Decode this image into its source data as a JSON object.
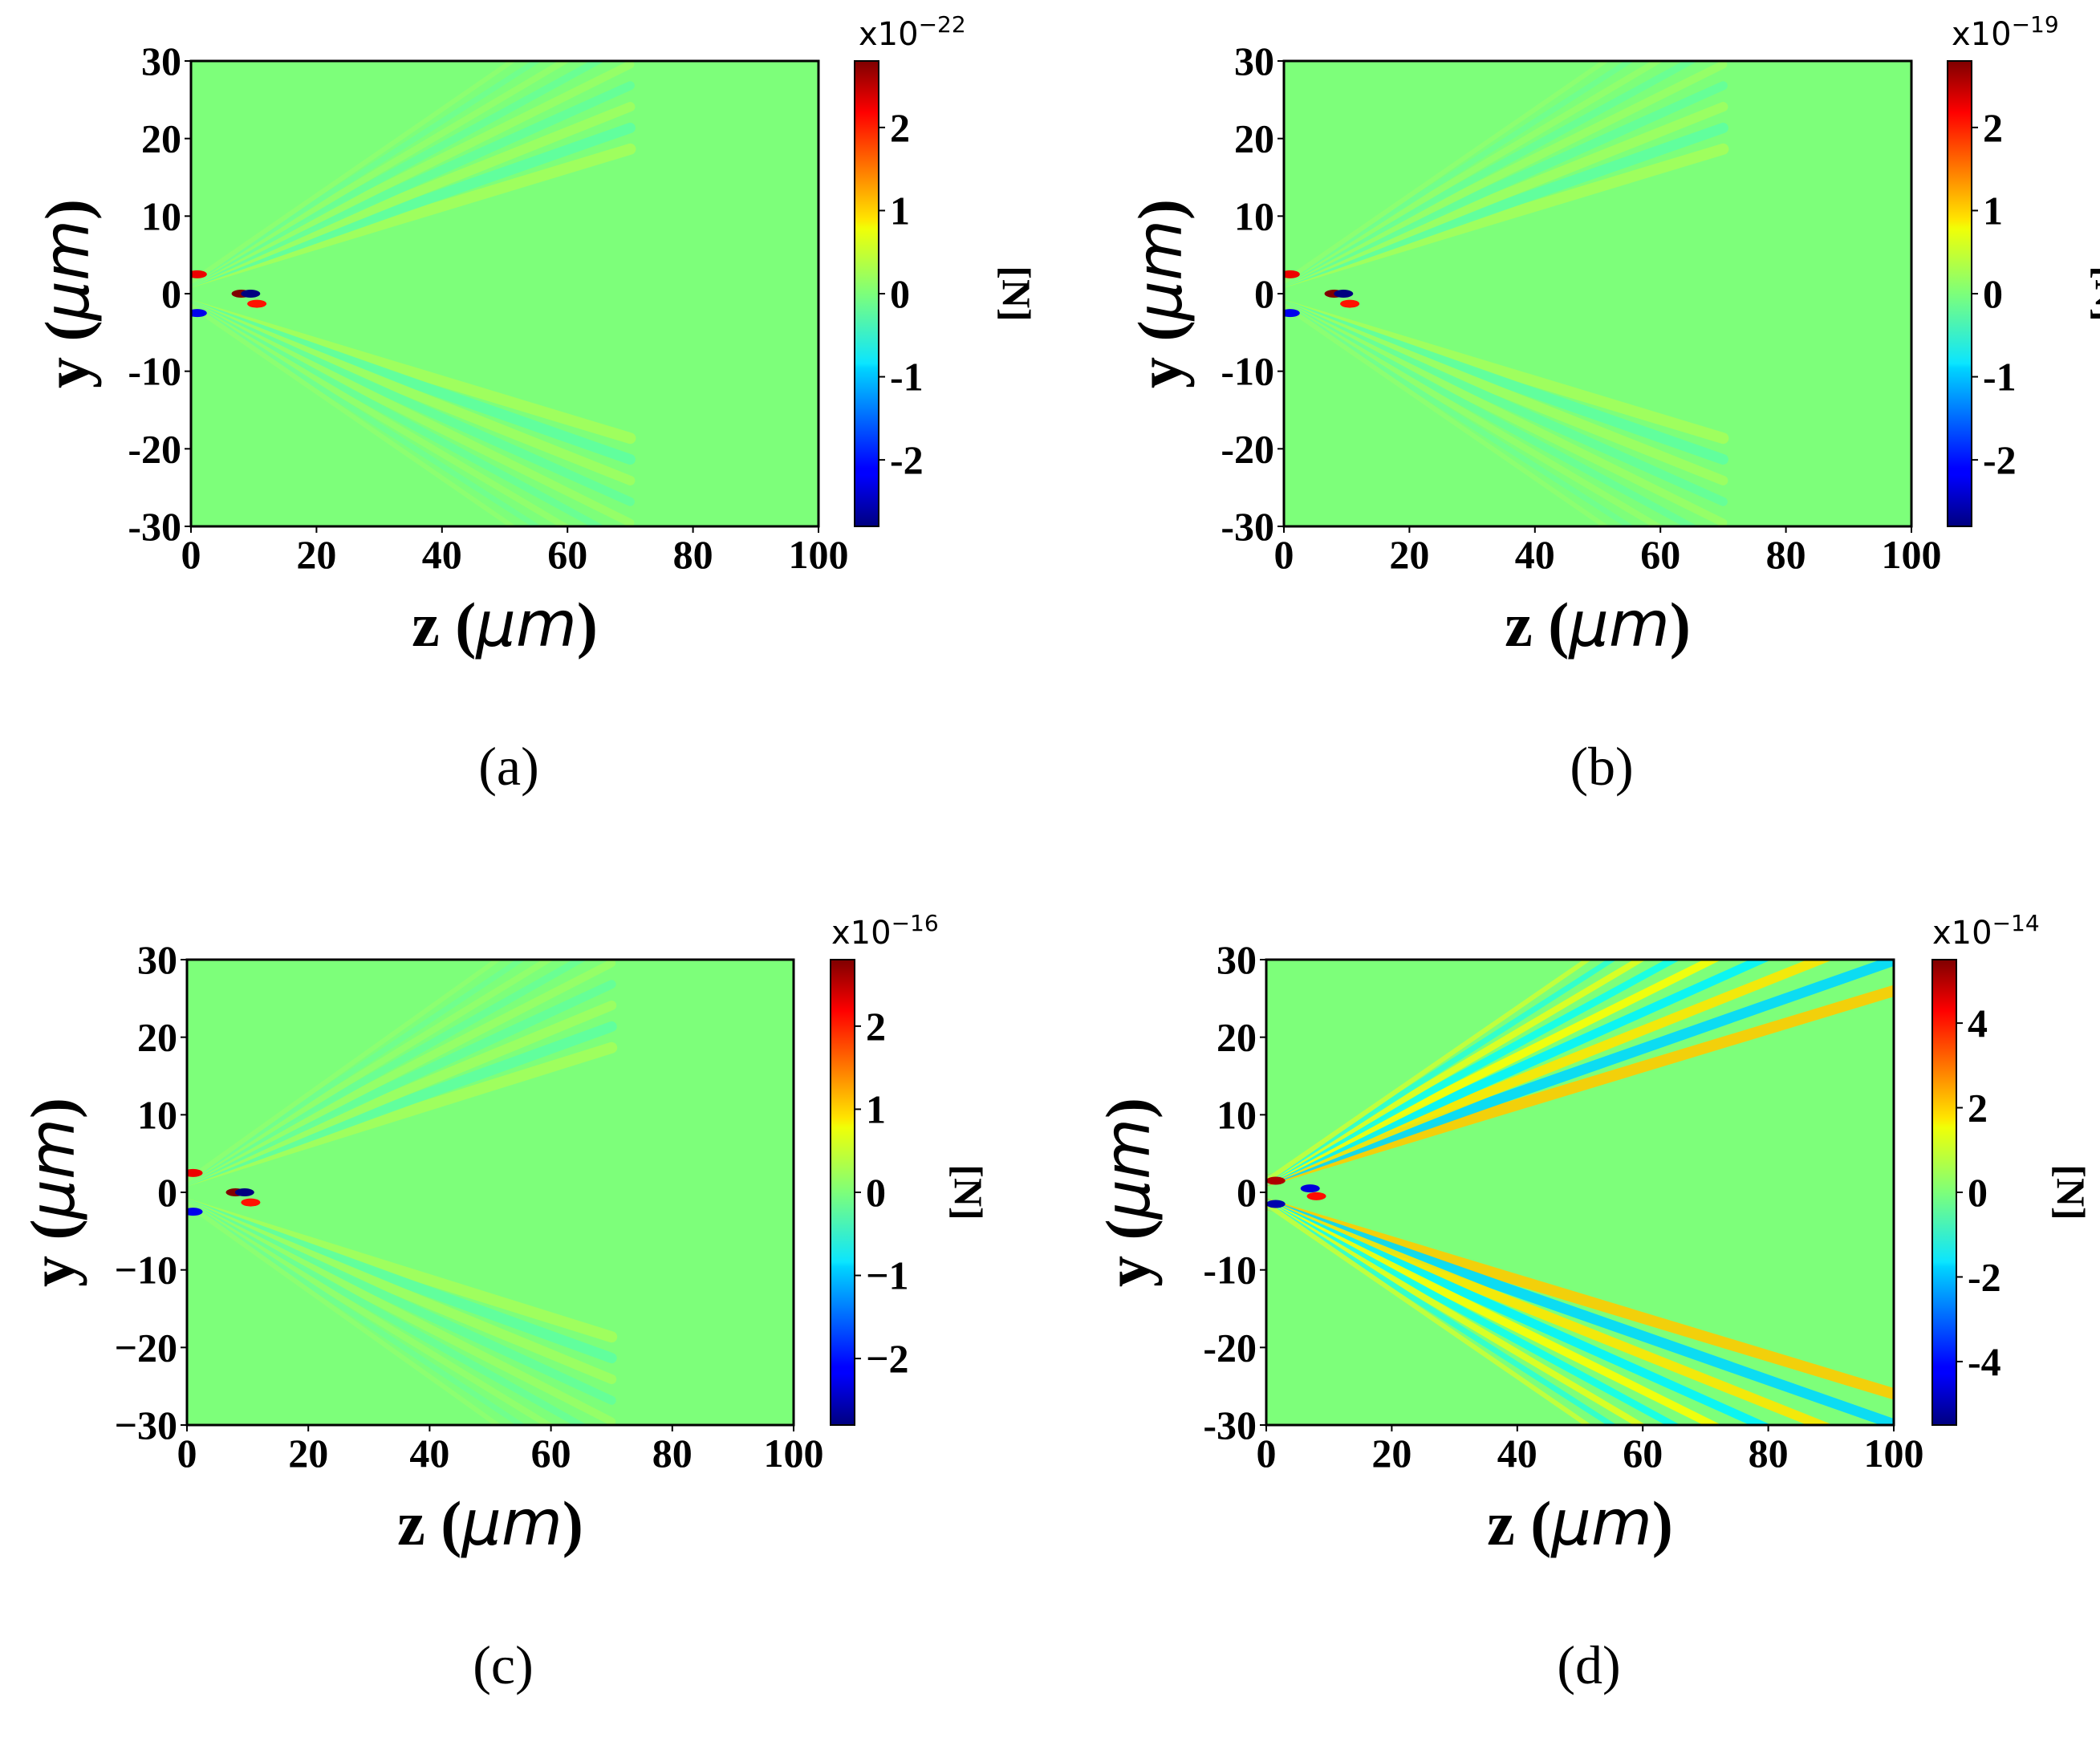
{
  "chart_data": [
    {
      "type": "heatmap",
      "panel_label": "(a)",
      "xlabel": "z",
      "xlabel_unit": "μm",
      "ylabel": "y",
      "ylabel_unit": "μm",
      "xlim": [
        0,
        100
      ],
      "ylim": [
        -30,
        30
      ],
      "xticks": [
        0,
        20,
        40,
        60,
        80,
        100
      ],
      "yticks": [
        30,
        20,
        10,
        0,
        -10,
        -20,
        -30
      ],
      "ytick_labels": [
        "30",
        "20",
        "10",
        "0",
        "-10",
        "-20",
        "-30"
      ],
      "colorbar": {
        "multiplier_base": "x10",
        "multiplier_exp": "−22",
        "unit": "[N]",
        "ticks": [
          2,
          1,
          0,
          -1,
          -2
        ],
        "tick_labels": [
          "2",
          "1",
          "0",
          "-1",
          "-2"
        ],
        "range": [
          -2.8,
          2.8
        ],
        "colormap": "jet"
      },
      "background_value": 0,
      "features": [
        {
          "kind": "beam",
          "z_range": [
            0,
            70
          ],
          "spread_deg": 24,
          "strength": 0.07
        },
        {
          "kind": "spot",
          "z": 8,
          "y": 0,
          "value": 2.8
        },
        {
          "kind": "spot",
          "z": 9.5,
          "y": 0,
          "value": -2.8
        },
        {
          "kind": "spot",
          "z": 1,
          "y": 2.5,
          "value": 2.2
        },
        {
          "kind": "spot",
          "z": 1,
          "y": -2.5,
          "value": -2.2
        },
        {
          "kind": "spot",
          "z": 10.5,
          "y": -1.3,
          "value": 2.0
        }
      ]
    },
    {
      "type": "heatmap",
      "panel_label": "(b)",
      "xlabel": "z",
      "xlabel_unit": "μm",
      "ylabel": "y",
      "ylabel_unit": "μm",
      "xlim": [
        0,
        100
      ],
      "ylim": [
        -30,
        30
      ],
      "xticks": [
        0,
        20,
        40,
        60,
        80,
        100
      ],
      "yticks": [
        30,
        20,
        10,
        0,
        -10,
        -20,
        -30
      ],
      "ytick_labels": [
        "30",
        "20",
        "10",
        "0",
        "-10",
        "-20",
        "-30"
      ],
      "colorbar": {
        "multiplier_base": "x10",
        "multiplier_exp": "−19",
        "unit": "[N]",
        "ticks": [
          2,
          1,
          0,
          -1,
          -2
        ],
        "tick_labels": [
          "2",
          "1",
          "0",
          "-1",
          "-2"
        ],
        "range": [
          -2.8,
          2.8
        ],
        "colormap": "jet"
      },
      "background_value": 0,
      "features": [
        {
          "kind": "beam",
          "z_range": [
            0,
            70
          ],
          "spread_deg": 24,
          "strength": 0.07
        },
        {
          "kind": "spot",
          "z": 8,
          "y": 0,
          "value": 2.8
        },
        {
          "kind": "spot",
          "z": 9.5,
          "y": 0,
          "value": -2.8
        },
        {
          "kind": "spot",
          "z": 1,
          "y": 2.5,
          "value": 2.2
        },
        {
          "kind": "spot",
          "z": 1,
          "y": -2.5,
          "value": -2.2
        },
        {
          "kind": "spot",
          "z": 10.5,
          "y": -1.3,
          "value": 2.0
        }
      ]
    },
    {
      "type": "heatmap",
      "panel_label": "(c)",
      "xlabel": "z",
      "xlabel_unit": "μm",
      "ylabel": "y",
      "ylabel_unit": "μm",
      "xlim": [
        0,
        100
      ],
      "ylim": [
        -30,
        30
      ],
      "xticks": [
        0,
        20,
        40,
        60,
        80,
        100
      ],
      "yticks": [
        30,
        20,
        10,
        0,
        -10,
        -20,
        -30
      ],
      "ytick_labels": [
        "30",
        "20",
        "10",
        "0",
        "−10",
        "−20",
        "−30"
      ],
      "colorbar": {
        "multiplier_base": "x10",
        "multiplier_exp": "−16",
        "unit": "[N]",
        "ticks": [
          2,
          1,
          0,
          -1,
          -2
        ],
        "tick_labels": [
          "2",
          "1",
          "0",
          "−1",
          "−2"
        ],
        "range": [
          -2.8,
          2.8
        ],
        "colormap": "jet"
      },
      "background_value": 0,
      "features": [
        {
          "kind": "beam",
          "z_range": [
            0,
            70
          ],
          "spread_deg": 24,
          "strength": 0.07
        },
        {
          "kind": "spot",
          "z": 8,
          "y": 0,
          "value": 2.8
        },
        {
          "kind": "spot",
          "z": 9.5,
          "y": 0,
          "value": -2.8
        },
        {
          "kind": "spot",
          "z": 1,
          "y": 2.5,
          "value": 2.2
        },
        {
          "kind": "spot",
          "z": 1,
          "y": -2.5,
          "value": -2.2
        },
        {
          "kind": "spot",
          "z": 10.5,
          "y": -1.3,
          "value": 2.0
        }
      ]
    },
    {
      "type": "heatmap",
      "panel_label": "(d)",
      "xlabel": "z",
      "xlabel_unit": "μm",
      "ylabel": "y",
      "ylabel_unit": "μm",
      "xlim": [
        0,
        100
      ],
      "ylim": [
        -30,
        30
      ],
      "xticks": [
        0,
        20,
        40,
        60,
        80,
        100
      ],
      "yticks": [
        30,
        20,
        10,
        0,
        -10,
        -20,
        -30
      ],
      "ytick_labels": [
        "30",
        "20",
        "10",
        "0",
        "-10",
        "-20",
        "-30"
      ],
      "colorbar": {
        "multiplier_base": "x10",
        "multiplier_exp": "−14",
        "unit": "[N]",
        "ticks": [
          4,
          2,
          0,
          -2,
          -4
        ],
        "tick_labels": [
          "4",
          "2",
          "0",
          "-2",
          "-4"
        ],
        "range": [
          -5.5,
          5.5
        ],
        "colormap": "jet"
      },
      "background_value": 0,
      "features": [
        {
          "kind": "beam",
          "z_range": [
            0,
            100
          ],
          "spread_deg": 24,
          "strength": 0.35
        },
        {
          "kind": "spot",
          "z": 1.5,
          "y": 1.5,
          "value": 5.0
        },
        {
          "kind": "spot",
          "z": 1.5,
          "y": -1.5,
          "value": -5.0
        },
        {
          "kind": "spot",
          "z": 7,
          "y": 0.5,
          "value": -4.5
        },
        {
          "kind": "spot",
          "z": 8,
          "y": -0.5,
          "value": 4.0
        }
      ]
    }
  ]
}
